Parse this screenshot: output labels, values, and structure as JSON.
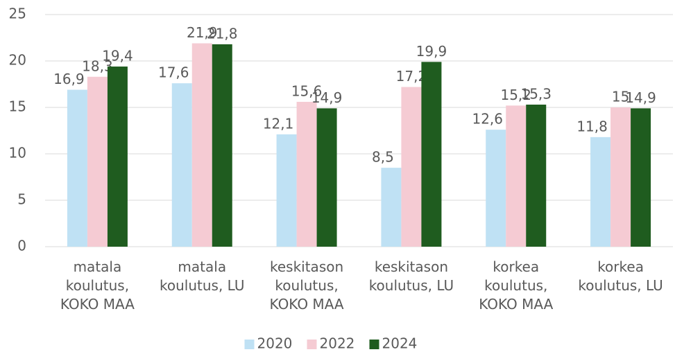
{
  "chart_data": {
    "type": "bar",
    "categories": [
      "matala koulutus, KOKO MAA",
      "matala koulutus, LU",
      "keskitason koulutus, KOKO MAA",
      "keskitason koulutus, LU",
      "korkea koulutus, KOKO MAA",
      "korkea koulutus, LU"
    ],
    "series": [
      {
        "name": "2020",
        "color": "#bfe1f4",
        "values": [
          16.9,
          17.6,
          12.1,
          8.5,
          12.6,
          11.8
        ],
        "value_labels": [
          "16,9",
          "17,6",
          "12,1",
          "8,5",
          "12,6",
          "11,8"
        ]
      },
      {
        "name": "2022",
        "color": "#f5cbd3",
        "values": [
          18.3,
          21.9,
          15.6,
          17.2,
          15.2,
          15
        ],
        "value_labels": [
          "18,3",
          "21,9",
          "15,6",
          "17,2",
          "15,2",
          "15"
        ]
      },
      {
        "name": "2024",
        "color": "#1f5c1f",
        "values": [
          19.4,
          21.8,
          14.9,
          19.9,
          15.3,
          14.9
        ],
        "value_labels": [
          "19,4",
          "21,8",
          "14,9",
          "19,9",
          "15,3",
          "14,9"
        ]
      }
    ],
    "ylim": [
      0,
      25
    ],
    "yticks": [
      0,
      5,
      10,
      15,
      20,
      25
    ],
    "grid": true,
    "legend": "bottom"
  }
}
